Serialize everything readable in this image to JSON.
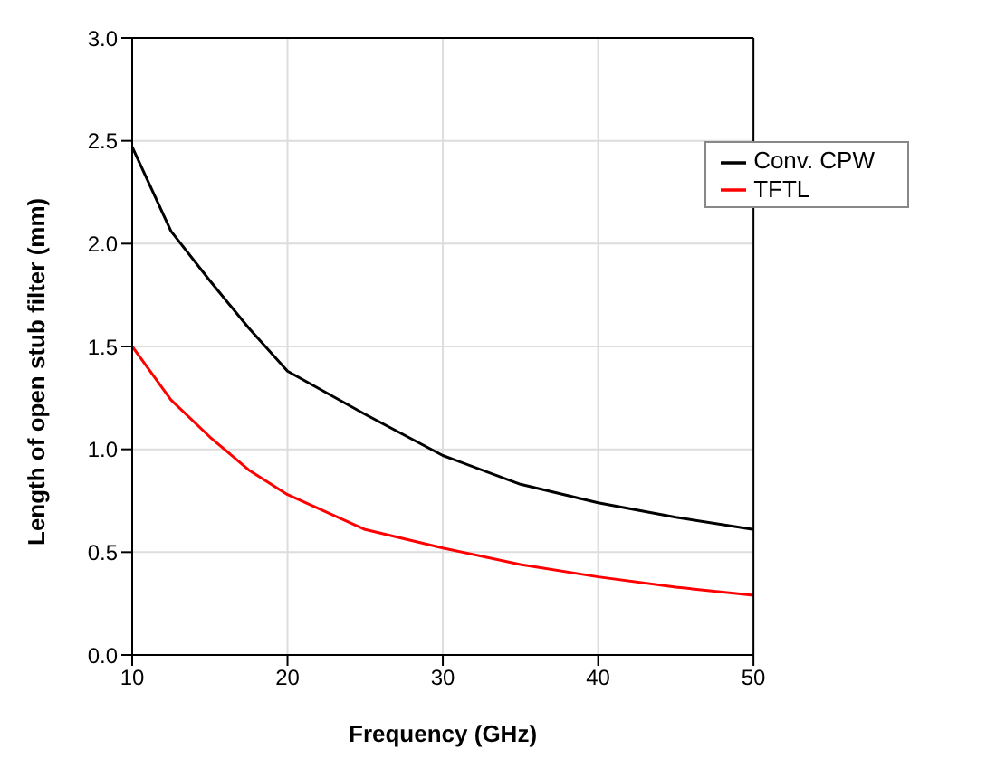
{
  "chart_data": {
    "type": "line",
    "xlabel": "Frequency (GHz)",
    "ylabel": "Length of open stub filter (mm)",
    "x": [
      10,
      12.5,
      15,
      17.5,
      20,
      25,
      30,
      35,
      40,
      45,
      50
    ],
    "series": [
      {
        "name": "Conv. CPW",
        "color": "#000000",
        "values": [
          2.47,
          2.06,
          1.82,
          1.59,
          1.38,
          1.17,
          0.97,
          0.83,
          0.74,
          0.67,
          0.61
        ]
      },
      {
        "name": "TFTL",
        "color": "#ff0000",
        "values": [
          1.5,
          1.24,
          1.06,
          0.9,
          0.78,
          0.61,
          0.52,
          0.44,
          0.38,
          0.33,
          0.29
        ]
      }
    ],
    "xlim": [
      10,
      50
    ],
    "xticks": [
      10,
      20,
      30,
      40,
      50
    ],
    "ylim": [
      0,
      3
    ],
    "yticks": [
      {
        "value": 0,
        "label": "0.0"
      },
      {
        "value": 0.5,
        "label": "0.5"
      },
      {
        "value": 1,
        "label": "1.0"
      },
      {
        "value": 1.5,
        "label": "1.5"
      },
      {
        "value": 2,
        "label": "2.0"
      },
      {
        "value": 2.5,
        "label": "2.5"
      },
      {
        "value": 3,
        "label": "3.0"
      }
    ],
    "grid": true,
    "legend": "top right",
    "marker": "none",
    "line_style": "solid"
  }
}
